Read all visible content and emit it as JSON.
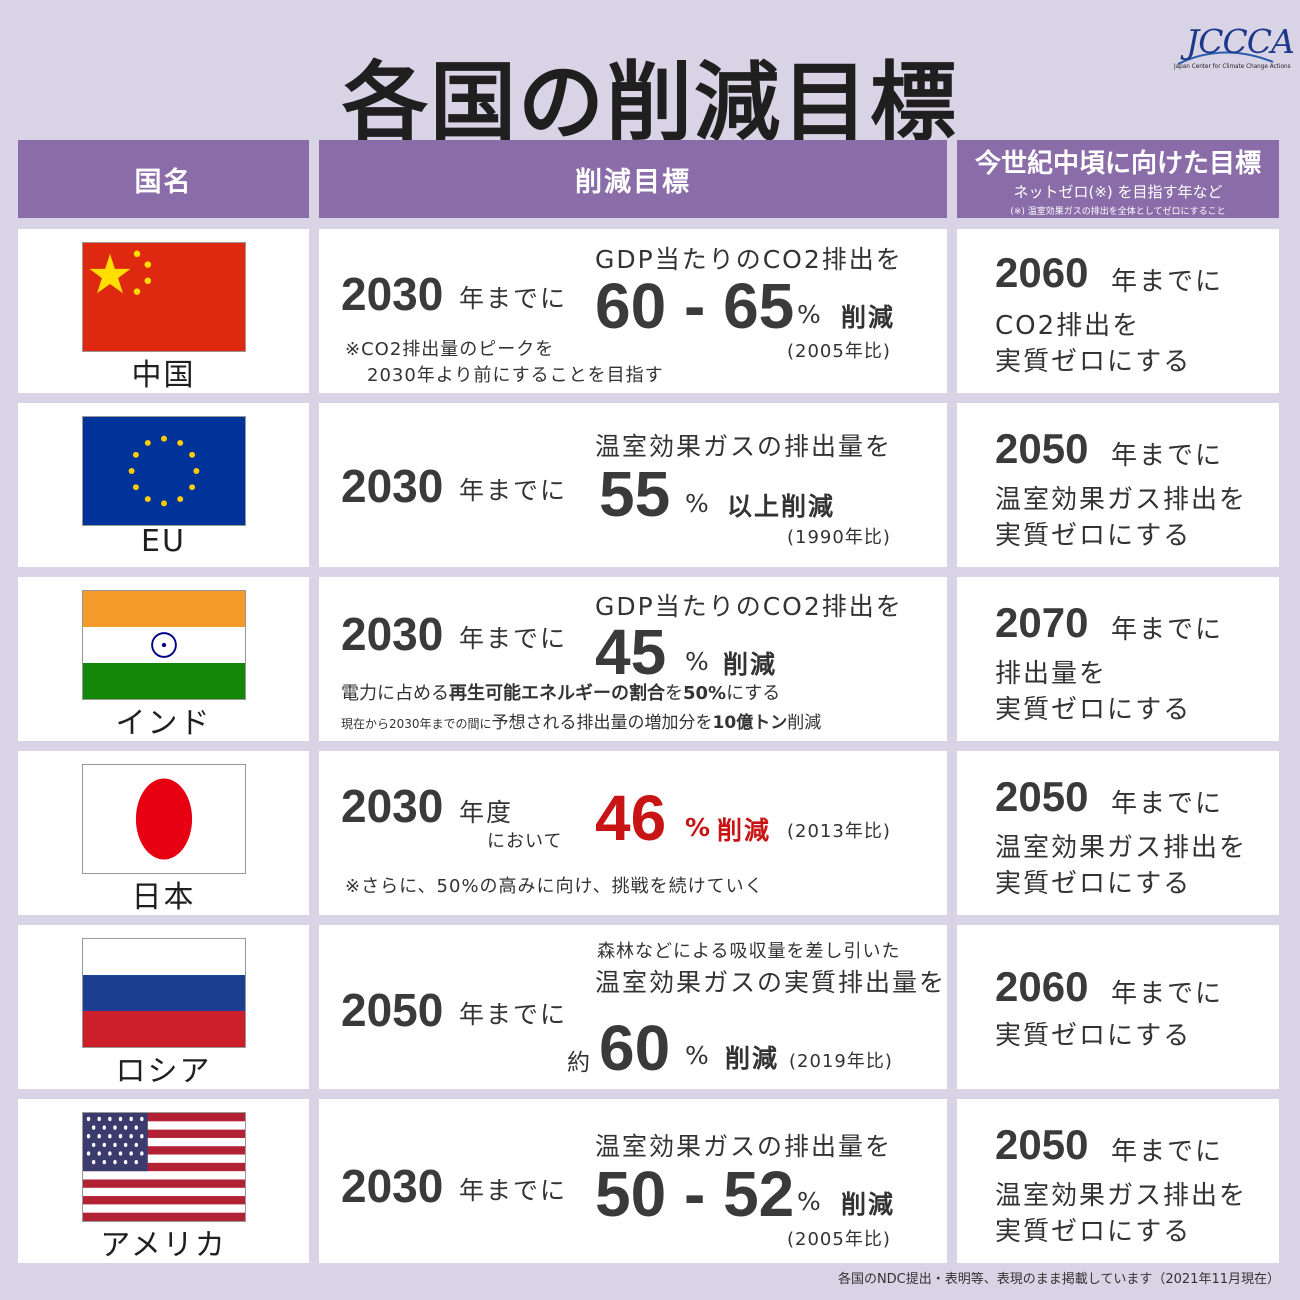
{
  "title": "各国の削減目標",
  "logo": {
    "main": "JCCCA",
    "sub": "Japan Center for Climate Change Actions"
  },
  "headers": {
    "country": "国名",
    "target": "削減目標",
    "mid_century": "今世紀中頃に向けた目標",
    "mid_century_sub": "ネットゼロ(※) を目指す年など",
    "mid_century_note": "(※) 温室効果ガスの排出を全体としてゼロにすること"
  },
  "rows": [
    {
      "country": "中国",
      "year": "2030",
      "year_suffix": "年までに",
      "pre": "GDP当たりのCO2排出を",
      "value": "60 - 65",
      "unit": "%",
      "action": "削減",
      "base": "(2005年比)",
      "note1": "※CO2排出量のピークを",
      "note2": "2030年より前にすることを目指す",
      "goal_year": "2060",
      "goal_suffix": "年までに",
      "goal_line1": "CO2排出を",
      "goal_line2": "実質ゼロにする"
    },
    {
      "country": "EU",
      "year": "2030",
      "year_suffix": "年までに",
      "pre": "温室効果ガスの排出量を",
      "value": "55",
      "unit": "%",
      "action": "以上削減",
      "base": "(1990年比)",
      "goal_year": "2050",
      "goal_suffix": "年までに",
      "goal_line1": "温室効果ガス排出を",
      "goal_line2": "実質ゼロにする"
    },
    {
      "country": "インド",
      "year": "2030",
      "year_suffix": "年までに",
      "pre": "GDP当たりのCO2排出を",
      "value": "45",
      "unit": "%",
      "action": "削減",
      "note1_a": "電力に占める",
      "note1_b": "再生可能エネルギーの割合",
      "note1_c": "を",
      "note1_d": "50%",
      "note1_e": "にする",
      "note2_a": "現在から2030年までの間に",
      "note2_b": "予想される排出量の増加分を",
      "note2_c": "10億トン",
      "note2_d": "削減",
      "goal_year": "2070",
      "goal_suffix": "年までに",
      "goal_line1": "排出量を",
      "goal_line2": "実質ゼロにする"
    },
    {
      "country": "日本",
      "year": "2030",
      "year_suffix": "年度",
      "year_suffix2": "において",
      "value": "46",
      "unit": "%",
      "action": "削減",
      "base": "(2013年比)",
      "note1": "※さらに、50%の高みに向け、挑戦を続けていく",
      "goal_year": "2050",
      "goal_suffix": "年までに",
      "goal_line1": "温室効果ガス排出を",
      "goal_line2": "実質ゼロにする"
    },
    {
      "country": "ロシア",
      "year": "2050",
      "year_suffix": "年までに",
      "pre_small": "森林などによる吸収量を差し引いた",
      "pre": "温室効果ガスの実質排出量を",
      "approx": "約",
      "value": "60",
      "unit": "%",
      "action": "削減",
      "base": "(2019年比)",
      "goal_year": "2060",
      "goal_suffix": "年までに",
      "goal_line1": "実質ゼロにする"
    },
    {
      "country": "アメリカ",
      "year": "2030",
      "year_suffix": "年までに",
      "pre": "温室効果ガスの排出量を",
      "value": "50 - 52",
      "unit": "%",
      "action": "削減",
      "base": "(2005年比)",
      "goal_year": "2050",
      "goal_suffix": "年までに",
      "goal_line1": "温室効果ガス排出を",
      "goal_line2": "実質ゼロにする"
    }
  ],
  "footer": "各国のNDC提出・表明等、表現のまま掲載しています（2021年11月現在）",
  "colors": {
    "header": "#8a6ca8",
    "background": "#d9d3e6",
    "highlight": "#c81414"
  }
}
